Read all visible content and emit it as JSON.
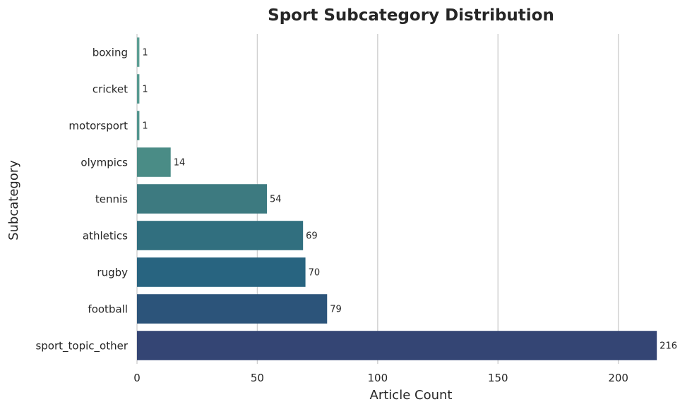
{
  "chart_data": {
    "type": "bar",
    "orientation": "horizontal",
    "title": "Sport Subcategory Distribution",
    "xlabel": "Article Count",
    "ylabel": "Subcategory",
    "categories": [
      "boxing",
      "cricket",
      "motorsport",
      "olympics",
      "tennis",
      "athletics",
      "rugby",
      "football",
      "sport_topic_other"
    ],
    "values": [
      1,
      1,
      1,
      14,
      54,
      69,
      70,
      79,
      216
    ],
    "value_labels": [
      "1",
      "1",
      "1",
      "14",
      "54",
      "69",
      "70",
      "79",
      "216"
    ],
    "colors": [
      "#5c9e94",
      "#579a91",
      "#52958e",
      "#4a8c86",
      "#3d7a80",
      "#316f7f",
      "#286480",
      "#2c547a",
      "#344574"
    ],
    "xlim": [
      0,
      218
    ],
    "xticks": [
      0,
      50,
      100,
      150,
      200
    ],
    "xtick_labels": [
      "0",
      "50",
      "100",
      "150",
      "200"
    ],
    "grid": "vertical",
    "legend": "none"
  }
}
